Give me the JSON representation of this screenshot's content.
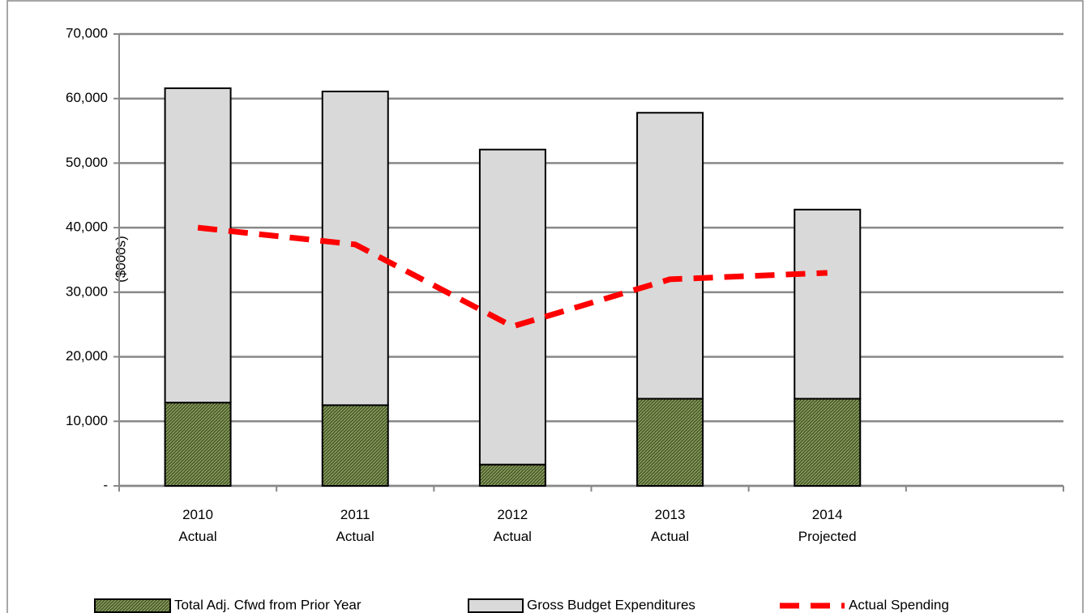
{
  "chart_data": {
    "type": "bar",
    "stacked": true,
    "y_label": "($000s)",
    "categories": [
      "2010\nActual",
      "2011\nActual",
      "2012\nActual",
      "2013\nActual",
      "2014\nProjected",
      null
    ],
    "series": [
      {
        "name": "Total Adj. Cfwd from Prior Year",
        "type": "bar",
        "color": "#4f6228",
        "values": [
          12900,
          12500,
          3300,
          13500,
          13500,
          null
        ]
      },
      {
        "name": "Gross Budget Expenditures",
        "type": "bar",
        "color": "#d9d9d9",
        "values": [
          48700,
          48600,
          48800,
          44300,
          29300,
          null
        ]
      },
      {
        "name": "Actual Spending",
        "type": "line",
        "color": "#ff0000",
        "values": [
          40000,
          37400,
          24700,
          32000,
          33000,
          null
        ]
      }
    ],
    "ylim": [
      0,
      70000
    ],
    "yticks": [
      {
        "value": 0,
        "label": "-"
      },
      {
        "value": 10000,
        "label": "10,000"
      },
      {
        "value": 20000,
        "label": "20,000"
      },
      {
        "value": 30000,
        "label": "30,000"
      },
      {
        "value": 40000,
        "label": "40,000"
      },
      {
        "value": 50000,
        "label": "50,000"
      },
      {
        "value": 60000,
        "label": "60,000"
      },
      {
        "value": 70000,
        "label": "70,000"
      }
    ],
    "grid": true,
    "legend": "bottom"
  }
}
